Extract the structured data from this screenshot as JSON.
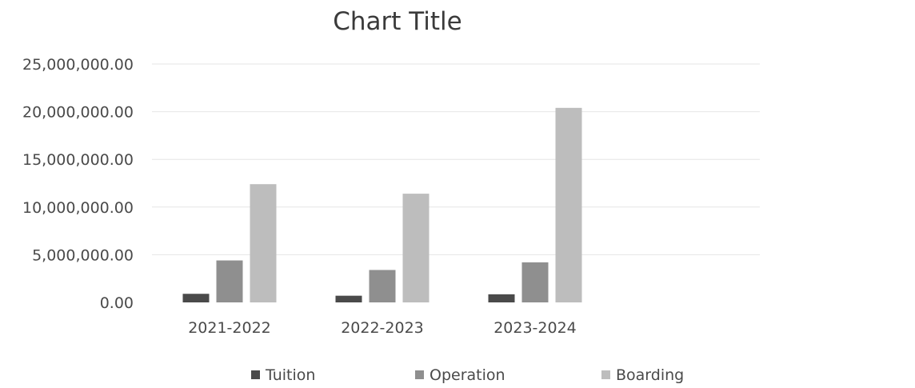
{
  "chart_data": {
    "type": "bar",
    "title": "Chart Title",
    "categories": [
      "2021-2022",
      "2022-2023",
      "2023-2024"
    ],
    "series": [
      {
        "name": "Tuition",
        "values": [
          900000,
          700000,
          850000
        ],
        "color": "#4a4a4a"
      },
      {
        "name": "Operation",
        "values": [
          4400000,
          3400000,
          4200000
        ],
        "color": "#8f8f8f"
      },
      {
        "name": "Boarding",
        "values": [
          12400000,
          11400000,
          20400000
        ],
        "color": "#bdbdbd"
      }
    ],
    "ylim": [
      0,
      25000000
    ],
    "y_ticks": [
      "0.00",
      "5,000,000.00",
      "10,000,000.00",
      "15,000,000.00",
      "20,000,000.00",
      "25,000,000.00"
    ],
    "y_tick_values": [
      0,
      5000000,
      10000000,
      15000000,
      20000000,
      25000000
    ],
    "grid": true,
    "legend_position": "bottom",
    "gridline_color": "#e6e6e6"
  }
}
